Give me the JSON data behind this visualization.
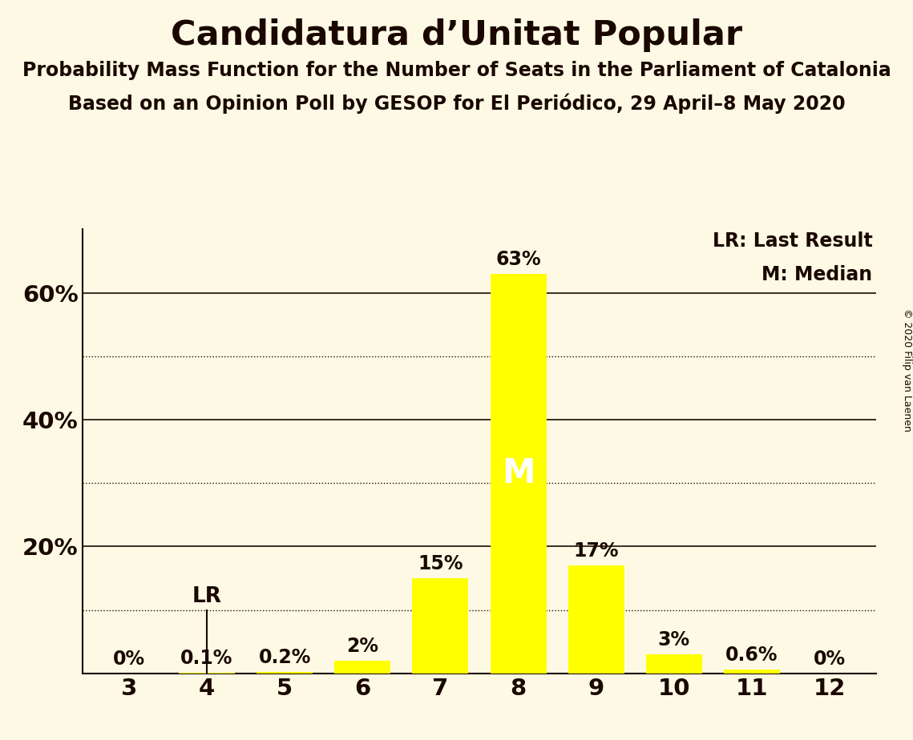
{
  "title": "Candidatura d’Unitat Popular",
  "subtitle1": "Probability Mass Function for the Number of Seats in the Parliament of Catalonia",
  "subtitle2": "Based on an Opinion Poll by GESOP for El Periódico, 29 April–8 May 2020",
  "copyright": "© 2020 Filip van Laenen",
  "seats": [
    3,
    4,
    5,
    6,
    7,
    8,
    9,
    10,
    11,
    12
  ],
  "probabilities": [
    0.0,
    0.1,
    0.2,
    2.0,
    15.0,
    63.0,
    17.0,
    3.0,
    0.6,
    0.0
  ],
  "prob_labels": [
    "0%",
    "0.1%",
    "0.2%",
    "2%",
    "15%",
    "63%",
    "17%",
    "3%",
    "0.6%",
    "0%"
  ],
  "bar_color": "#FFFF00",
  "background_color": "#FEF9E4",
  "text_color": "#1a0800",
  "median_seat": 8,
  "last_result_seat": 4,
  "xlim": [
    2.4,
    12.6
  ],
  "ylim": [
    0,
    70
  ],
  "solid_hlines": [
    0,
    20,
    40,
    60
  ],
  "dotted_hlines": [
    10,
    30,
    50
  ],
  "ytick_labeled": [
    20,
    40,
    60
  ],
  "legend_lr": "LR: Last Result",
  "legend_m": "M: Median",
  "bar_width": 0.72
}
